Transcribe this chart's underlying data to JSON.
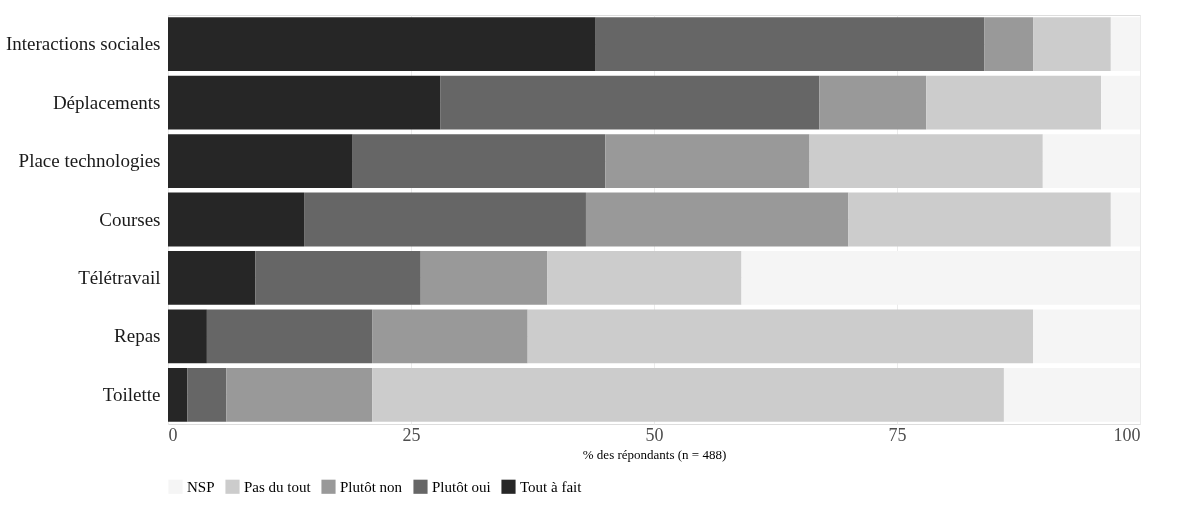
{
  "chart_data": {
    "type": "bar",
    "orientation": "horizontal",
    "stacked": true,
    "xlabel": "% des répondants (n = 488)",
    "categories": [
      "Interactions sociales",
      "Déplacements",
      "Place technologies",
      "Courses",
      "Télétravail",
      "Repas",
      "Toilette"
    ],
    "series": [
      {
        "name": "Tout à fait",
        "color": "#262626",
        "values": [
          44,
          28,
          19,
          14,
          9,
          4,
          2
        ]
      },
      {
        "name": "Plutôt oui",
        "color": "#666666",
        "values": [
          40,
          39,
          26,
          29,
          17,
          17,
          4
        ]
      },
      {
        "name": "Plutôt non",
        "color": "#999999",
        "values": [
          5,
          11,
          21,
          27,
          13,
          16,
          15
        ]
      },
      {
        "name": "Pas du tout",
        "color": "#cccccc",
        "values": [
          8,
          18,
          24,
          27,
          20,
          52,
          65
        ]
      },
      {
        "name": "NSP",
        "color": "#f5f5f5",
        "values": [
          3,
          4,
          10,
          3,
          41,
          11,
          14
        ]
      }
    ],
    "xlim": [
      0,
      100
    ],
    "xticks": [
      0,
      25,
      50,
      75,
      100
    ],
    "grid": true,
    "legend": "bottom"
  }
}
